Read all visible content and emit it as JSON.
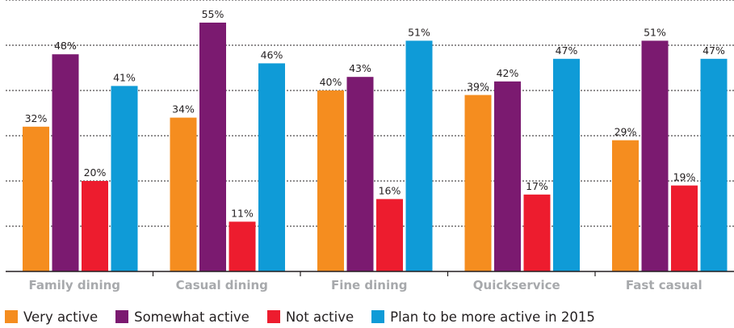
{
  "chart_data": {
    "type": "bar",
    "categories": [
      "Family dining",
      "Casual dining",
      "Fine dining",
      "Quickservice",
      "Fast casual"
    ],
    "series": [
      {
        "name": "Very active",
        "color": "#f58d1f",
        "values": [
          32,
          34,
          40,
          39,
          29
        ]
      },
      {
        "name": "Somewhat active",
        "color": "#7b1a70",
        "values": [
          48,
          55,
          43,
          42,
          51
        ]
      },
      {
        "name": "Not active",
        "color": "#ed1c2e",
        "values": [
          20,
          11,
          16,
          17,
          19
        ]
      },
      {
        "name": "Plan to be more active in 2015",
        "color": "#0f9bd7",
        "values": [
          41,
          46,
          51,
          47,
          47
        ]
      }
    ],
    "value_suffix": "%",
    "ylim": [
      0,
      60
    ],
    "grid": true,
    "legend_position": "bottom-left"
  }
}
